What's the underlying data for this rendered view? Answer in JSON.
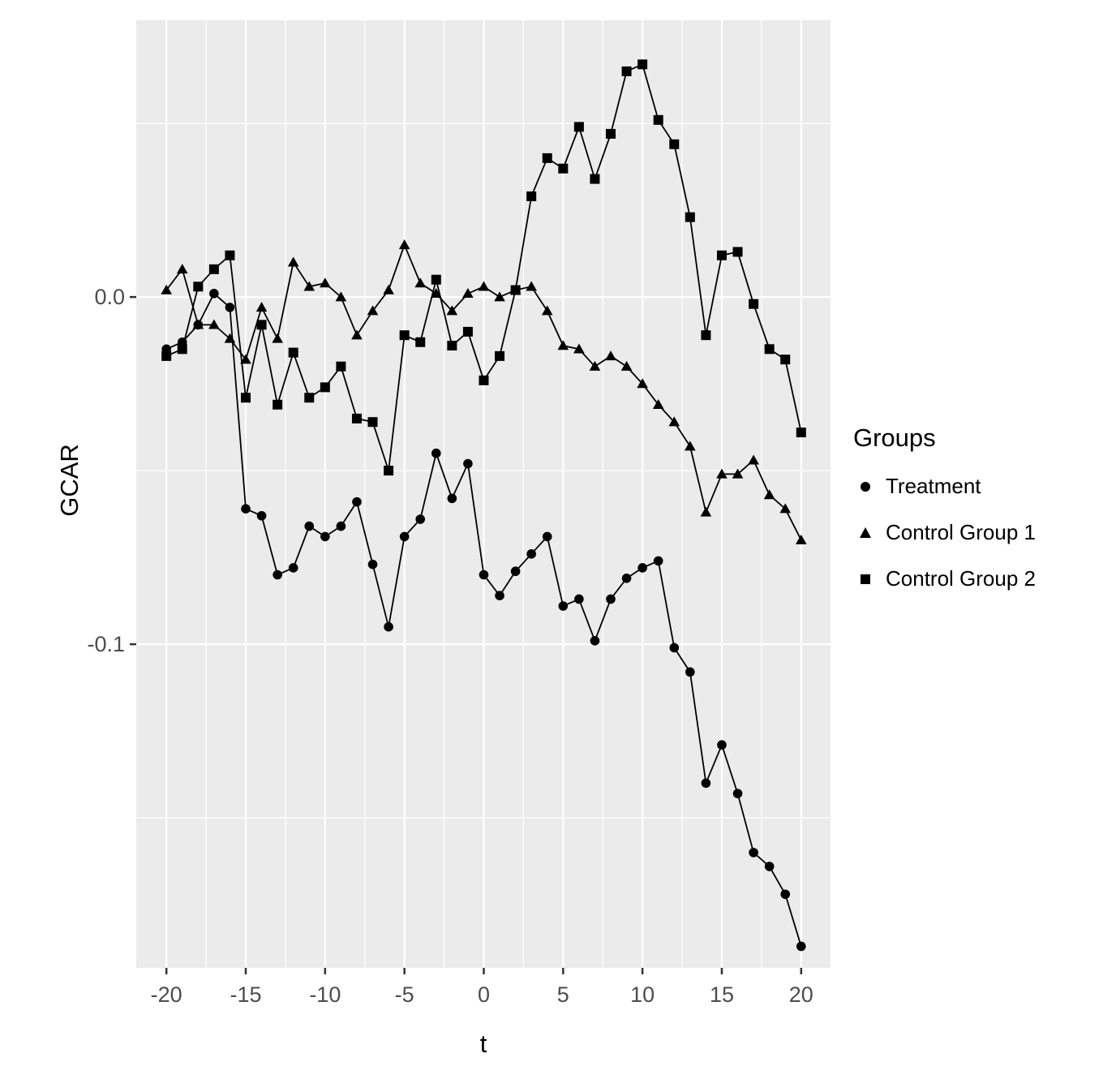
{
  "chart_data": {
    "type": "line",
    "title": "",
    "xlabel": "t",
    "ylabel": "GCAR",
    "x_start": -20,
    "x_end": 20,
    "x_ticks": [
      -20,
      -15,
      -10,
      -5,
      0,
      5,
      10,
      15,
      20
    ],
    "x_minor": [
      -17.5,
      -12.5,
      -7.5,
      -2.5,
      2.5,
      7.5,
      12.5,
      17.5
    ],
    "y_ticks": [
      0.0,
      -0.1
    ],
    "y_tick_labels": [
      "0.0",
      "-0.1"
    ],
    "y_minor": [
      0.05,
      -0.05,
      -0.15
    ],
    "xlim": [
      -21.9,
      21.85
    ],
    "ylim": [
      -0.1932,
      0.0797
    ],
    "grid": true,
    "legend": {
      "title": "Groups",
      "position": "right"
    },
    "series": [
      {
        "name": "Treatment",
        "marker": "circle",
        "values": [
          -0.015,
          -0.013,
          -0.008,
          0.001,
          -0.003,
          -0.061,
          -0.063,
          -0.08,
          -0.078,
          -0.066,
          -0.069,
          -0.066,
          -0.059,
          -0.077,
          -0.095,
          -0.069,
          -0.064,
          -0.045,
          -0.058,
          -0.048,
          -0.08,
          -0.086,
          -0.079,
          -0.074,
          -0.069,
          -0.089,
          -0.087,
          -0.099,
          -0.087,
          -0.081,
          -0.078,
          -0.076,
          -0.101,
          -0.108,
          -0.14,
          -0.129,
          -0.143,
          -0.16,
          -0.164,
          -0.172,
          -0.187
        ]
      },
      {
        "name": "Control Group 1",
        "marker": "triangle",
        "values": [
          0.002,
          0.008,
          -0.008,
          -0.008,
          -0.012,
          -0.018,
          -0.003,
          -0.012,
          0.01,
          0.003,
          0.004,
          0.0,
          -0.011,
          -0.004,
          0.002,
          0.015,
          0.004,
          0.001,
          -0.004,
          0.001,
          0.003,
          0.0,
          0.002,
          0.003,
          -0.004,
          -0.014,
          -0.015,
          -0.02,
          -0.017,
          -0.02,
          -0.025,
          -0.031,
          -0.036,
          -0.043,
          -0.062,
          -0.051,
          -0.051,
          -0.047,
          -0.057,
          -0.061,
          -0.07
        ]
      },
      {
        "name": "Control Group 2",
        "marker": "square",
        "values": [
          -0.017,
          -0.015,
          0.003,
          0.008,
          0.012,
          -0.029,
          -0.008,
          -0.031,
          -0.016,
          -0.029,
          -0.026,
          -0.02,
          -0.035,
          -0.036,
          -0.05,
          -0.011,
          -0.013,
          0.005,
          -0.014,
          -0.01,
          -0.024,
          -0.017,
          0.002,
          0.029,
          0.04,
          0.037,
          0.049,
          0.034,
          0.047,
          0.065,
          0.067,
          0.051,
          0.044,
          0.023,
          -0.011,
          0.012,
          0.013,
          -0.002,
          -0.015,
          -0.018,
          -0.039
        ]
      }
    ],
    "colors": {
      "panel": "#ebebeb",
      "grid": "#ffffff",
      "series": "#000000",
      "tick_text": "#4d4d4d",
      "tick_mark": "#333333"
    }
  }
}
